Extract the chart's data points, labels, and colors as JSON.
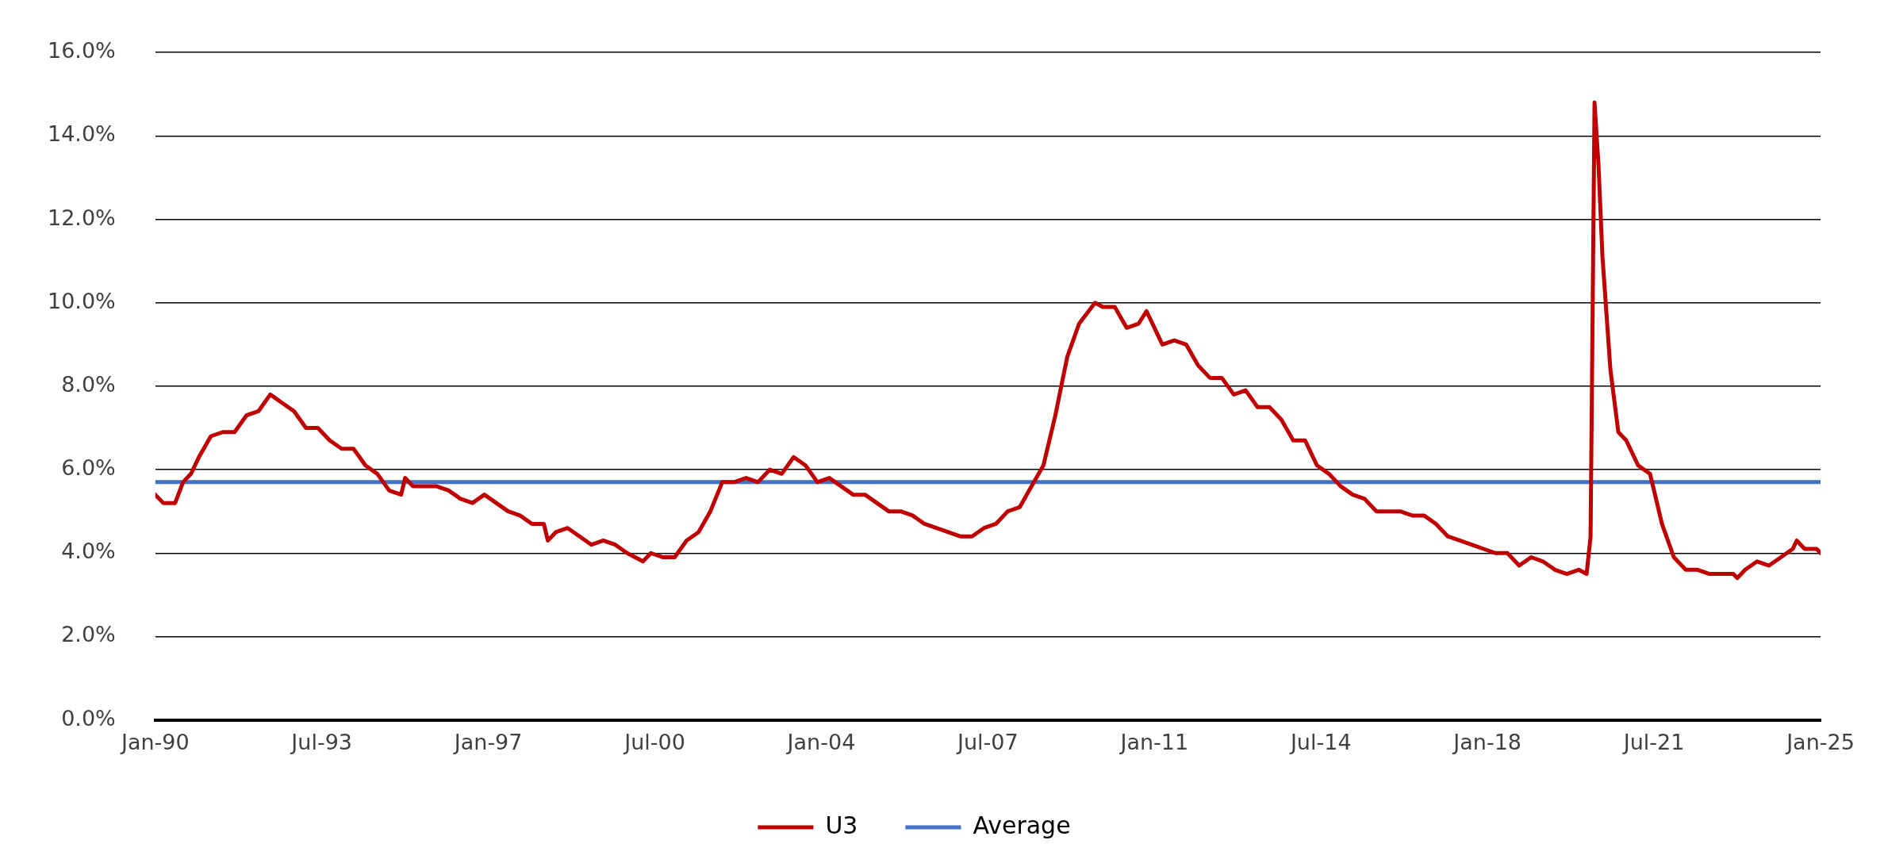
{
  "chart_data": {
    "type": "line",
    "x": [
      "1990-01",
      "1990-03",
      "1990-06",
      "1990-08",
      "1990-10",
      "1990-12",
      "1991-03",
      "1991-06",
      "1991-09",
      "1991-12",
      "1992-03",
      "1992-06",
      "1992-09",
      "1992-12",
      "1993-03",
      "1993-06",
      "1993-09",
      "1993-12",
      "1994-03",
      "1994-06",
      "1994-09",
      "1994-12",
      "1995-03",
      "1995-04",
      "1995-06",
      "1995-09",
      "1995-12",
      "1996-03",
      "1996-06",
      "1996-09",
      "1996-12",
      "1997-03",
      "1997-06",
      "1997-09",
      "1997-12",
      "1998-03",
      "1998-04",
      "1998-06",
      "1998-09",
      "1998-12",
      "1999-03",
      "1999-06",
      "1999-09",
      "1999-12",
      "2000-04",
      "2000-06",
      "2000-09",
      "2000-12",
      "2001-03",
      "2001-06",
      "2001-09",
      "2001-12",
      "2002-03",
      "2002-06",
      "2002-09",
      "2002-12",
      "2003-03",
      "2003-06",
      "2003-09",
      "2003-12",
      "2004-03",
      "2004-06",
      "2004-09",
      "2004-12",
      "2005-03",
      "2005-06",
      "2005-09",
      "2005-12",
      "2006-03",
      "2006-06",
      "2006-09",
      "2006-12",
      "2007-03",
      "2007-06",
      "2007-09",
      "2007-12",
      "2008-03",
      "2008-06",
      "2008-09",
      "2008-12",
      "2009-03",
      "2009-06",
      "2009-10",
      "2009-12",
      "2010-03",
      "2010-06",
      "2010-09",
      "2010-11",
      "2011-03",
      "2011-06",
      "2011-09",
      "2011-12",
      "2012-03",
      "2012-06",
      "2012-09",
      "2012-12",
      "2013-03",
      "2013-06",
      "2013-09",
      "2013-12",
      "2014-03",
      "2014-06",
      "2014-09",
      "2014-12",
      "2015-03",
      "2015-06",
      "2015-09",
      "2015-12",
      "2016-03",
      "2016-06",
      "2016-09",
      "2016-12",
      "2017-03",
      "2017-06",
      "2017-09",
      "2017-12",
      "2018-03",
      "2018-06",
      "2018-09",
      "2018-12",
      "2019-03",
      "2019-06",
      "2019-09",
      "2019-12",
      "2020-02",
      "2020-03",
      "2020-04",
      "2020-05",
      "2020-06",
      "2020-08",
      "2020-10",
      "2020-12",
      "2021-03",
      "2021-06",
      "2021-09",
      "2021-12",
      "2022-03",
      "2022-06",
      "2022-09",
      "2022-12",
      "2023-03",
      "2023-04",
      "2023-06",
      "2023-09",
      "2023-12",
      "2024-03",
      "2024-06",
      "2024-07",
      "2024-09",
      "2024-12",
      "2025-01"
    ],
    "series": [
      {
        "name": "U3",
        "color": "#c00000",
        "values": [
          5.4,
          5.2,
          5.2,
          5.7,
          5.9,
          6.3,
          6.8,
          6.9,
          6.9,
          7.3,
          7.4,
          7.8,
          7.6,
          7.4,
          7.0,
          7.0,
          6.7,
          6.5,
          6.5,
          6.1,
          5.9,
          5.5,
          5.4,
          5.8,
          5.6,
          5.6,
          5.6,
          5.5,
          5.3,
          5.2,
          5.4,
          5.2,
          5.0,
          4.9,
          4.7,
          4.7,
          4.3,
          4.5,
          4.6,
          4.4,
          4.2,
          4.3,
          4.2,
          4.0,
          3.8,
          4.0,
          3.9,
          3.9,
          4.3,
          4.5,
          5.0,
          5.7,
          5.7,
          5.8,
          5.7,
          6.0,
          5.9,
          6.3,
          6.1,
          5.7,
          5.8,
          5.6,
          5.4,
          5.4,
          5.2,
          5.0,
          5.0,
          4.9,
          4.7,
          4.6,
          4.5,
          4.4,
          4.4,
          4.6,
          4.7,
          5.0,
          5.1,
          5.6,
          6.1,
          7.3,
          8.7,
          9.5,
          10.0,
          9.9,
          9.9,
          9.4,
          9.5,
          9.8,
          9.0,
          9.1,
          9.0,
          8.5,
          8.2,
          8.2,
          7.8,
          7.9,
          7.5,
          7.5,
          7.2,
          6.7,
          6.7,
          6.1,
          5.9,
          5.6,
          5.4,
          5.3,
          5.0,
          5.0,
          5.0,
          4.9,
          4.9,
          4.7,
          4.4,
          4.3,
          4.2,
          4.1,
          4.0,
          4.0,
          3.7,
          3.9,
          3.8,
          3.6,
          3.5,
          3.6,
          3.5,
          4.4,
          14.8,
          13.3,
          11.1,
          8.4,
          6.9,
          6.7,
          6.1,
          5.9,
          4.7,
          3.9,
          3.6,
          3.6,
          3.5,
          3.5,
          3.5,
          3.4,
          3.6,
          3.8,
          3.7,
          3.9,
          4.1,
          4.3,
          4.1,
          4.1,
          4.0
        ]
      },
      {
        "name": "Average",
        "color": "#4472c4",
        "x": [
          "1990-01",
          "2025-01"
        ],
        "values": [
          5.7,
          5.7
        ]
      }
    ],
    "xlim": [
      "1990-01",
      "2025-01"
    ],
    "xticks": [
      {
        "value": "1990-01",
        "label": "Jan-90"
      },
      {
        "value": "1993-07",
        "label": "Jul-93"
      },
      {
        "value": "1997-01",
        "label": "Jan-97"
      },
      {
        "value": "2000-07",
        "label": "Jul-00"
      },
      {
        "value": "2004-01",
        "label": "Jan-04"
      },
      {
        "value": "2007-07",
        "label": "Jul-07"
      },
      {
        "value": "2011-01",
        "label": "Jan-11"
      },
      {
        "value": "2014-07",
        "label": "Jul-14"
      },
      {
        "value": "2018-01",
        "label": "Jan-18"
      },
      {
        "value": "2021-07",
        "label": "Jul-21"
      },
      {
        "value": "2025-01",
        "label": "Jan-25"
      }
    ],
    "ylim": [
      0,
      16
    ],
    "yticks": [
      {
        "value": 0,
        "label": "0.0%"
      },
      {
        "value": 2,
        "label": "2.0%"
      },
      {
        "value": 4,
        "label": "4.0%"
      },
      {
        "value": 6,
        "label": "6.0%"
      },
      {
        "value": 8,
        "label": "8.0%"
      },
      {
        "value": 10,
        "label": "10.0%"
      },
      {
        "value": 12,
        "label": "12.0%"
      },
      {
        "value": 14,
        "label": "14.0%"
      },
      {
        "value": 16,
        "label": "16.0%"
      }
    ],
    "grid": "y",
    "legend": "bottom",
    "marker": "none",
    "line_style": "solid"
  }
}
